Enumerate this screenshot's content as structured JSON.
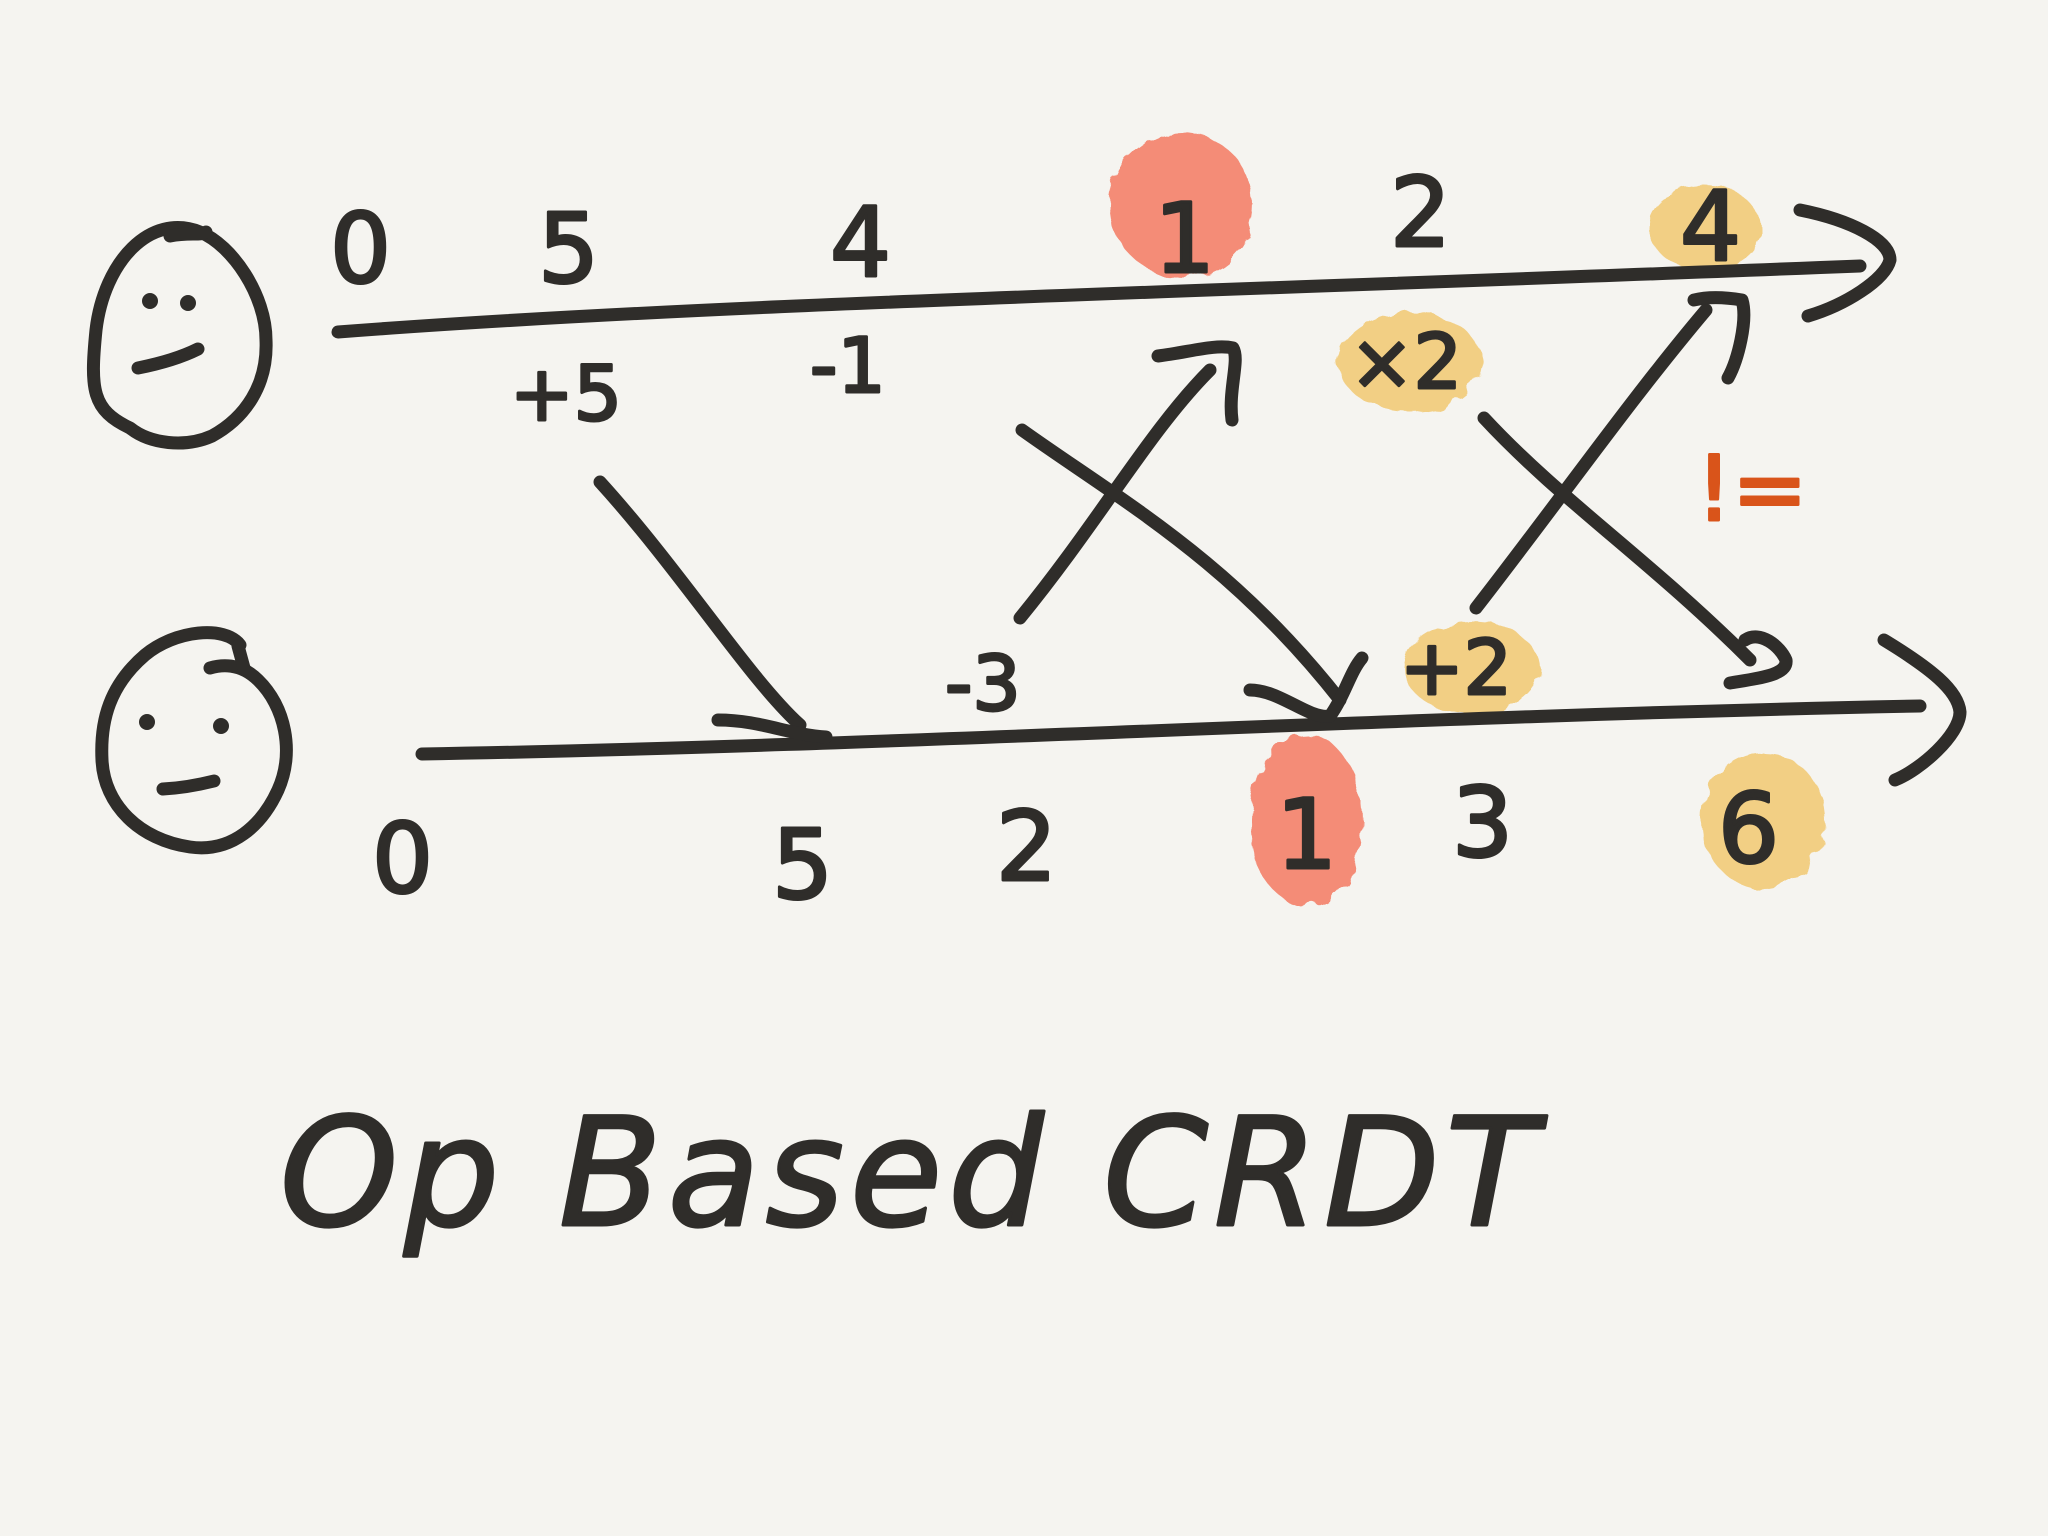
{
  "colors": {
    "background": "#f5f4f0",
    "ink": "#2f2d2a",
    "conflict_highlight": "#f47a62",
    "merge_highlight": "#f2c66b",
    "not_equal": "#d9541a"
  },
  "icons": {
    "replica_a": "neutral-face-icon",
    "replica_b": "worried-face-icon"
  },
  "replica_a": {
    "states": [
      "0",
      "5",
      "4",
      "1",
      "2",
      "4"
    ],
    "local_ops": [
      "+5",
      "-1"
    ],
    "received_ops": [
      "×2"
    ]
  },
  "replica_b": {
    "states": [
      "0",
      "5",
      "2",
      "1",
      "3",
      "6"
    ],
    "local_ops": [
      "-3",
      "+2"
    ]
  },
  "inequality": "!=",
  "title": "Op Based CRDT"
}
